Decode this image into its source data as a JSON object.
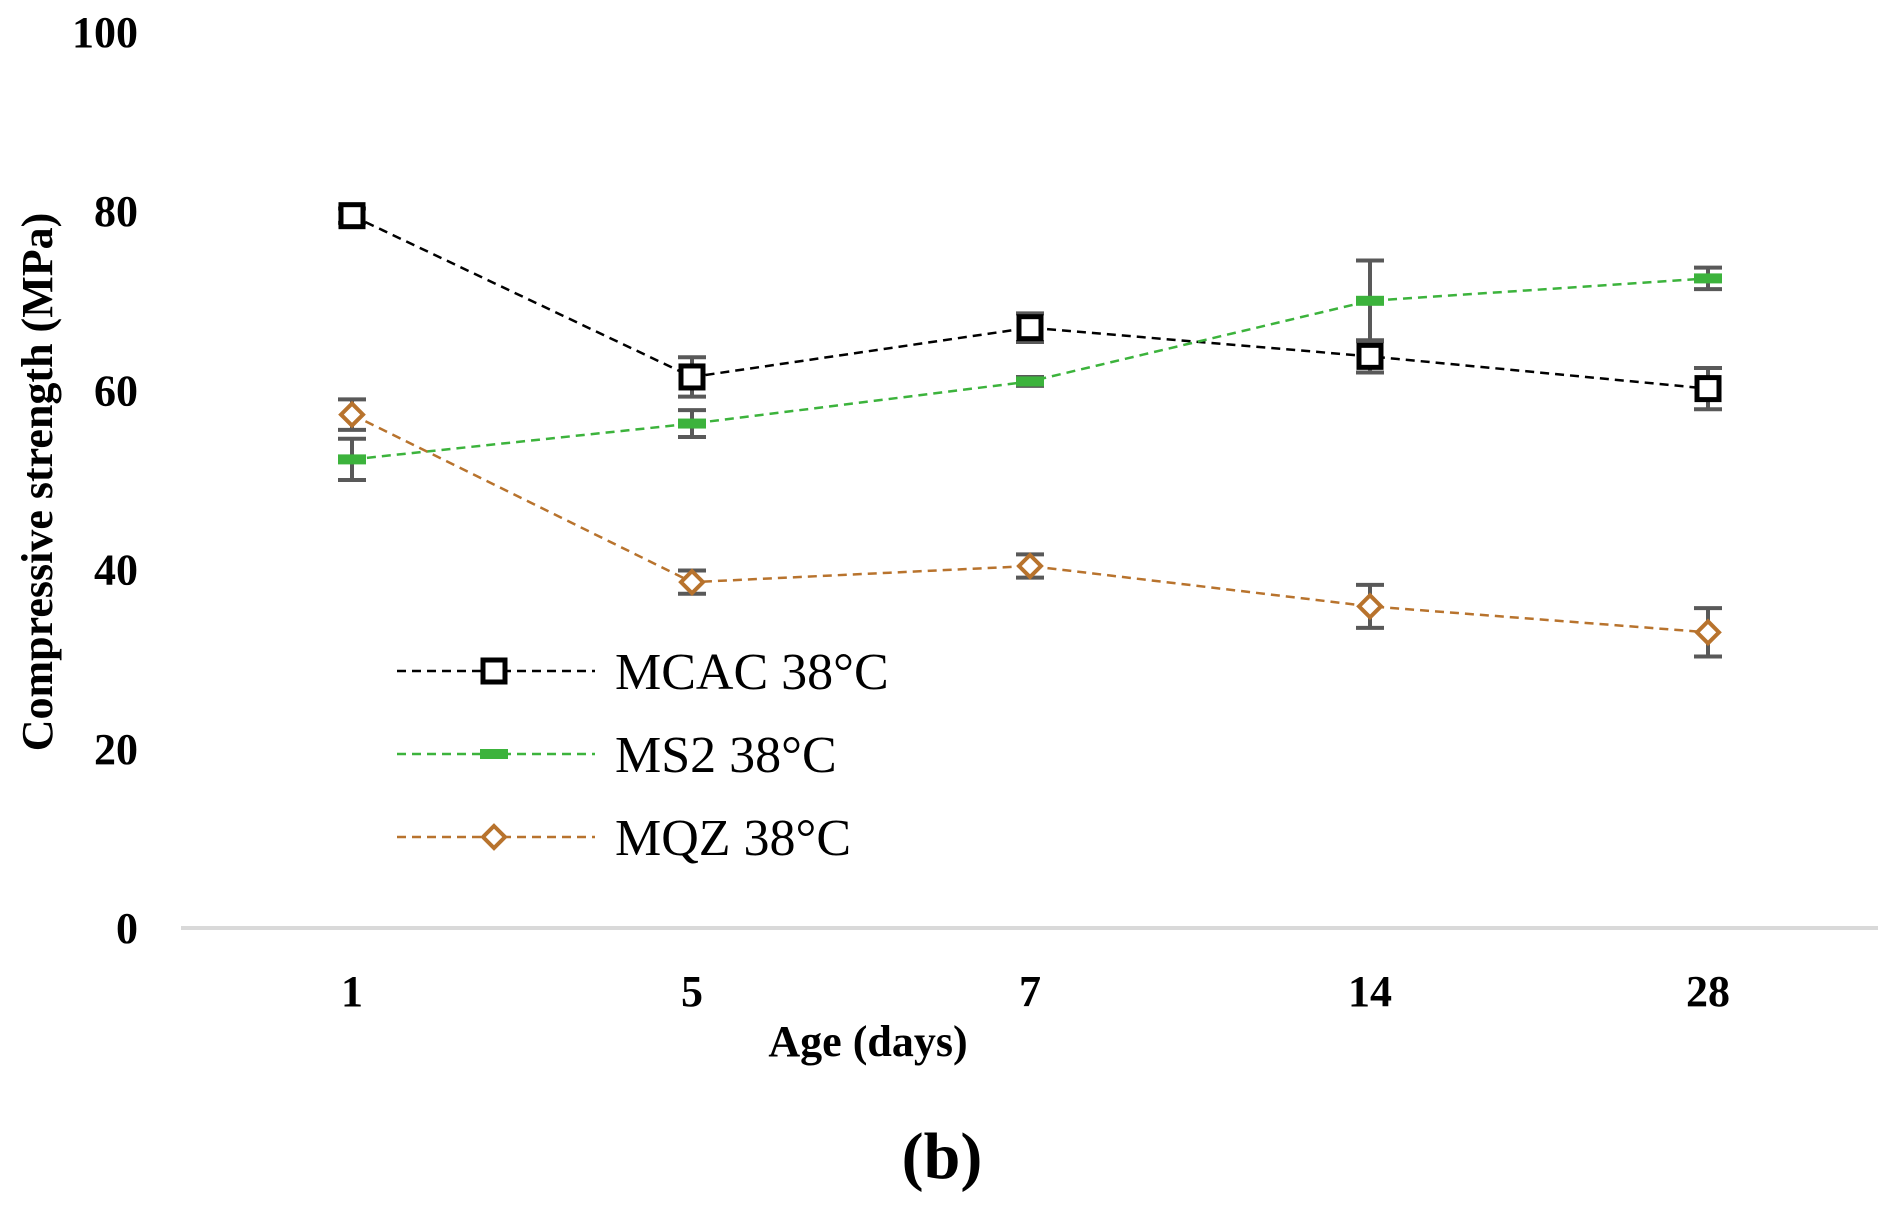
{
  "chart_data": {
    "type": "line",
    "title": "",
    "panel_label": "(b)",
    "xlabel": "Age (days)",
    "ylabel": "Compressive strength (MPa)",
    "categories": [
      "1",
      "5",
      "7",
      "14",
      "28"
    ],
    "ylim": [
      0,
      100
    ],
    "yticks": [
      "0",
      "20",
      "40",
      "60",
      "80",
      "100"
    ],
    "grid": false,
    "legend_position": "lower-left",
    "series": [
      {
        "name": "MCAC 38°C",
        "color": "#000000",
        "marker": "square-open",
        "values": [
          79.5,
          61.5,
          67,
          63.8,
          60.2
        ],
        "errors": [
          0.8,
          2.2,
          1.6,
          1.8,
          2.3
        ]
      },
      {
        "name": "MS2 38°C",
        "color": "#3cb33c",
        "marker": "dash",
        "values": [
          52.3,
          56.3,
          61,
          70,
          72.5
        ],
        "errors": [
          2.3,
          1.5,
          0.5,
          4.5,
          1.2
        ]
      },
      {
        "name": "MQZ 38°C",
        "color": "#b8732d",
        "marker": "diamond-open",
        "values": [
          57.3,
          38.6,
          40.4,
          35.9,
          33
        ],
        "errors": [
          1.7,
          1.3,
          1.3,
          2.4,
          2.7
        ]
      }
    ]
  }
}
